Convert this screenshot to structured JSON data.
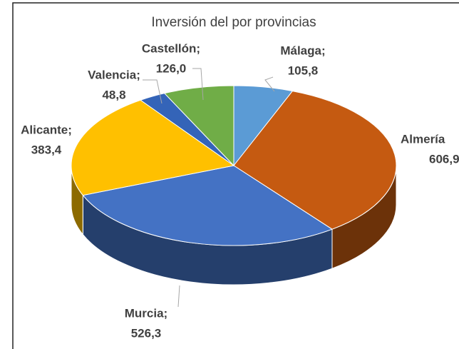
{
  "chart_data": {
    "type": "pie3d",
    "title": "Inversión del por provincias",
    "categories": [
      "Málaga;",
      "Almería",
      "Murcia;",
      "Alicante;",
      "Valencia;",
      "Castellón;"
    ],
    "values": [
      105.8,
      606.9,
      526.3,
      383.4,
      48.8,
      126.0
    ],
    "value_labels": [
      "105,8",
      "606,9",
      "526,3",
      "383,4",
      "48,8",
      "126,0"
    ],
    "colors": [
      "#5b9bd5",
      "#c55a11",
      "#4472c4",
      "#ffc000",
      "#3464b8",
      "#70ad47"
    ]
  }
}
